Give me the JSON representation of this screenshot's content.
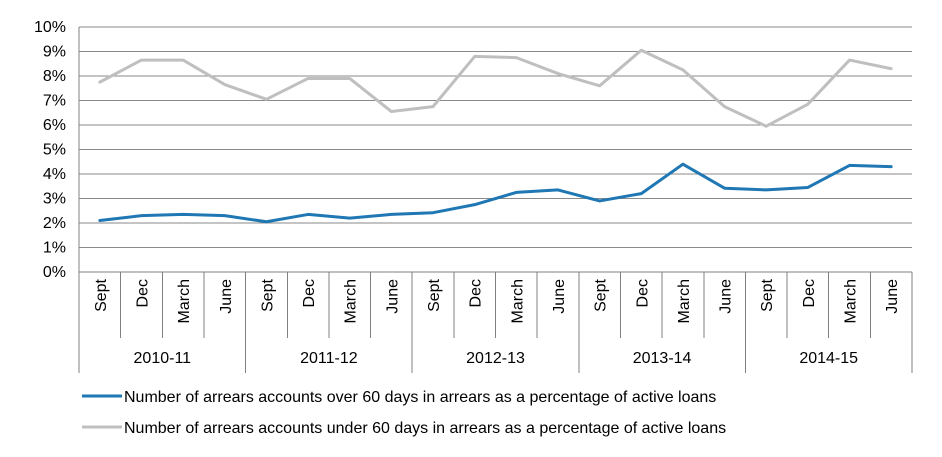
{
  "chart_data": {
    "type": "line",
    "x": [
      "Sept",
      "Dec",
      "March",
      "June",
      "Sept",
      "Dec",
      "March",
      "June",
      "Sept",
      "Dec",
      "March",
      "June",
      "Sept",
      "Dec",
      "March",
      "June",
      "Sept",
      "Dec",
      "March",
      "June"
    ],
    "groups": [
      {
        "label": "2010-11",
        "span": 4
      },
      {
        "label": "2011-12",
        "span": 4
      },
      {
        "label": "2012-13",
        "span": 4
      },
      {
        "label": "2013-14",
        "span": 4
      },
      {
        "label": "2014-15",
        "span": 4
      }
    ],
    "y_ticks": [
      "0%",
      "1%",
      "2%",
      "3%",
      "4%",
      "5%",
      "6%",
      "7%",
      "8%",
      "9%",
      "10%"
    ],
    "ylim": [
      0,
      10
    ],
    "grid": true,
    "legend_position": "bottom",
    "series": [
      {
        "name": "Number of arrears accounts over 60 days in arrears as a percentage of active loans",
        "color": "#1F77B4",
        "values": [
          2.1,
          2.3,
          2.35,
          2.3,
          2.05,
          2.35,
          2.2,
          2.35,
          2.42,
          2.75,
          3.25,
          3.35,
          2.9,
          3.2,
          4.4,
          3.42,
          3.35,
          3.45,
          4.35,
          4.3
        ]
      },
      {
        "name": "Number of arrears accounts under 60 days in arrears as a percentage of active loans",
        "color": "#BFBFBF",
        "values": [
          7.75,
          8.65,
          8.65,
          7.65,
          7.05,
          7.9,
          7.9,
          6.55,
          6.75,
          8.8,
          8.75,
          8.1,
          7.6,
          9.05,
          8.25,
          6.75,
          5.95,
          6.85,
          8.65,
          8.3
        ]
      }
    ]
  }
}
